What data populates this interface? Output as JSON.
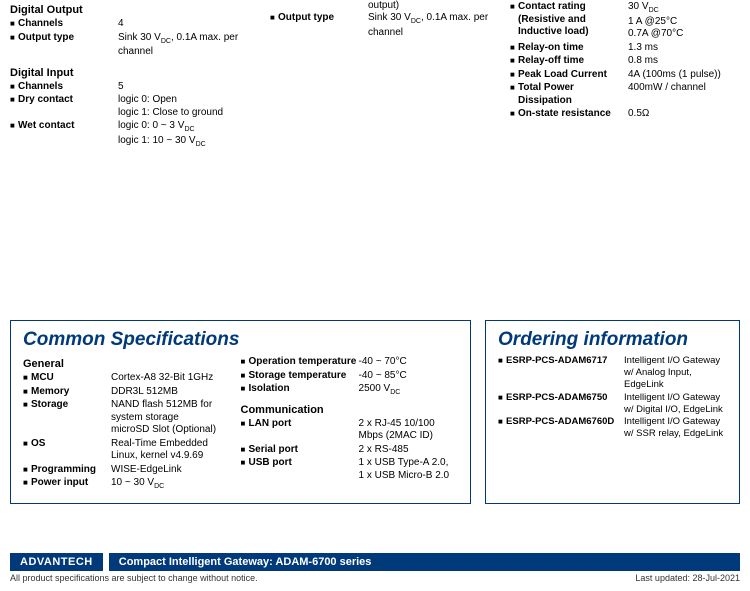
{
  "top": {
    "col1": {
      "digital_output": {
        "title": "Digital Output",
        "rows": [
          {
            "label": "Channels",
            "value": "4"
          },
          {
            "label": "Output type",
            "value": "Sink 30 V<sub>DC</sub>, 0.1A max. per channel"
          }
        ]
      },
      "digital_input": {
        "title": "Digital Input",
        "rows": [
          {
            "label": "Channels",
            "value": "5"
          },
          {
            "label": "Dry contact",
            "value": "logic 0: Open<br>logic 1: Close to ground"
          },
          {
            "label": "Wet contact",
            "value": "logic 0: 0 ~ 3 V<sub>DC</sub><br>logic 1: 10 ~ 30 V<sub>DC</sub>"
          }
        ]
      }
    },
    "col2": {
      "pre": "output)",
      "rows": [
        {
          "label": "Output type",
          "value": "Sink 30 V<sub>DC</sub>, 0.1A max. per channel"
        }
      ]
    },
    "col3": {
      "rows": [
        {
          "label": "Contact rating (Resistive and Inductive load)",
          "value": "30 V<sub>DC</sub><br>1 A @25°C<br>0.7A @70°C"
        },
        {
          "label": "Relay-on time",
          "value": "1.3 ms"
        },
        {
          "label": "Relay-off time",
          "value": "0.8 ms"
        },
        {
          "label": "Peak Load Current",
          "value": "4A (100ms (1 pulse))"
        },
        {
          "label": "Total Power Dissipation",
          "value": "400mW / channel"
        },
        {
          "label": "On-state resistance",
          "value": "0.5Ω"
        }
      ]
    }
  },
  "common": {
    "title": "Common Specifications",
    "general": {
      "title": "General",
      "rows": [
        {
          "label": "MCU",
          "value": "Cortex-A8 32-Bit 1GHz"
        },
        {
          "label": "Memory",
          "value": "DDR3L 512MB"
        },
        {
          "label": "Storage",
          "value": "NAND flash 512MB for system storage<br>microSD Slot (Optional)"
        },
        {
          "label": "OS",
          "value": "Real-Time Embedded Linux, kernel v4.9.69"
        },
        {
          "label": "Programming",
          "value": "WISE-EdgeLink"
        },
        {
          "label": "Power input",
          "value": "10 ~ 30 V<sub>DC</sub>"
        }
      ]
    },
    "env": {
      "rows": [
        {
          "label": "Operation temperature",
          "value": "-40 ~ 70°C"
        },
        {
          "label": "Storage temperature",
          "value": "-40 ~ 85°C"
        },
        {
          "label": "Isolation",
          "value": "2500 V<sub>DC</sub>"
        }
      ]
    },
    "comm": {
      "title": "Communication",
      "rows": [
        {
          "label": "LAN port",
          "value": "2 x RJ-45 10/100 Mbps (2MAC ID)"
        },
        {
          "label": "Serial port",
          "value": "2 x RS-485"
        },
        {
          "label": "USB port",
          "value": "1 x  USB Type-A 2.0,<br>1 x USB Micro-B 2.0"
        }
      ]
    }
  },
  "ordering": {
    "title": "Ordering information",
    "rows": [
      {
        "code": "ESRP-PCS-ADAM6717",
        "desc": "Intelligent I/O Gateway w/ Analog Input, EdgeLink"
      },
      {
        "code": "ESRP-PCS-ADAM6750",
        "desc": "Intelligent I/O Gateway w/ Digital I/O, EdgeLink"
      },
      {
        "code": "ESRP-PCS-ADAM6760D",
        "desc": "Intelligent I/O Gateway w/ SSR relay, EdgeLink"
      }
    ]
  },
  "footer": {
    "logo": "ADVANTECH",
    "bar": "Compact Intelligent Gateway: ADAM-6700 series",
    "disclaimer": "All product specifications are subject to change without notice.",
    "updated": "Last updated: 28-Jul-2021"
  }
}
